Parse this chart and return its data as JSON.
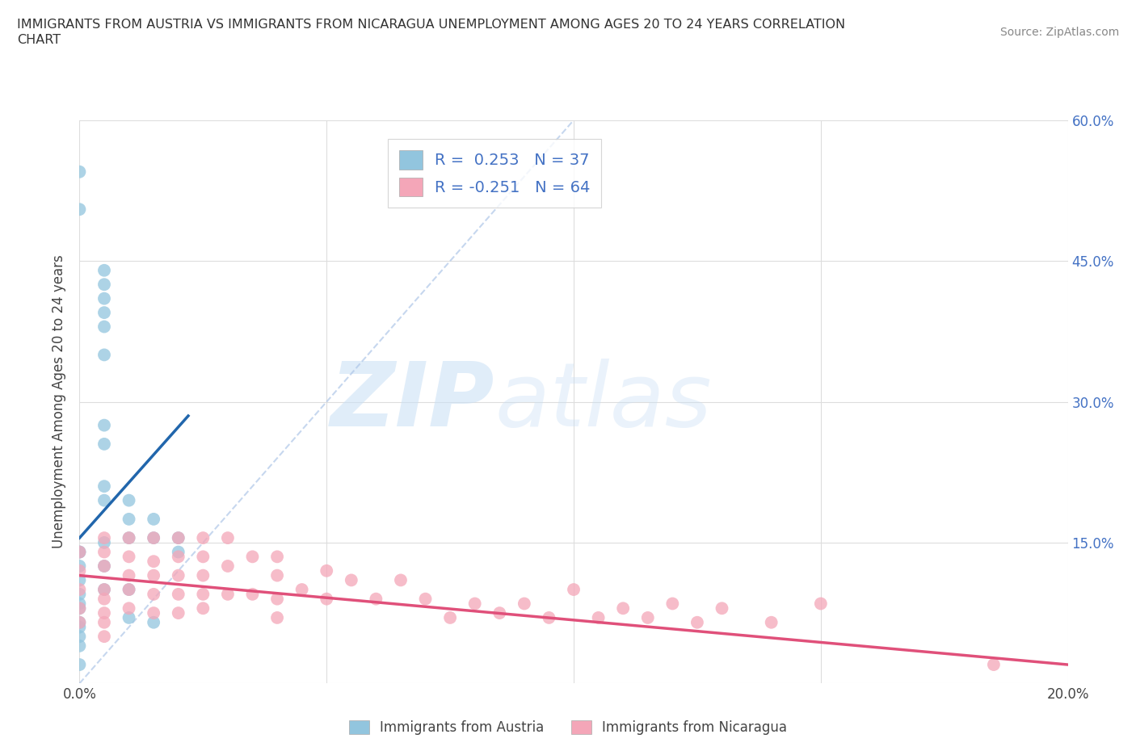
{
  "title_line1": "IMMIGRANTS FROM AUSTRIA VS IMMIGRANTS FROM NICARAGUA UNEMPLOYMENT AMONG AGES 20 TO 24 YEARS CORRELATION",
  "title_line2": "CHART",
  "source": "Source: ZipAtlas.com",
  "ylabel": "Unemployment Among Ages 20 to 24 years",
  "xmin": 0.0,
  "xmax": 0.2,
  "ymin": 0.0,
  "ymax": 0.6,
  "x_ticks": [
    0.0,
    0.05,
    0.1,
    0.15,
    0.2
  ],
  "y_ticks": [
    0.0,
    0.15,
    0.3,
    0.45,
    0.6
  ],
  "austria_color": "#92c5de",
  "nicaragua_color": "#f4a6b8",
  "austria_line_color": "#2166ac",
  "nicaragua_line_color": "#e0507a",
  "austria_R": 0.253,
  "austria_N": 37,
  "nicaragua_R": -0.251,
  "nicaragua_N": 64,
  "austria_scatter_x": [
    0.0,
    0.0,
    0.005,
    0.005,
    0.005,
    0.005,
    0.005,
    0.005,
    0.005,
    0.005,
    0.005,
    0.005,
    0.005,
    0.005,
    0.005,
    0.0,
    0.0,
    0.0,
    0.0,
    0.0,
    0.0,
    0.0,
    0.0,
    0.0,
    0.0,
    0.0,
    0.0,
    0.01,
    0.01,
    0.01,
    0.01,
    0.01,
    0.015,
    0.015,
    0.015,
    0.02,
    0.02
  ],
  "austria_scatter_y": [
    0.545,
    0.505,
    0.44,
    0.425,
    0.41,
    0.395,
    0.38,
    0.35,
    0.275,
    0.255,
    0.21,
    0.195,
    0.15,
    0.125,
    0.1,
    0.14,
    0.125,
    0.11,
    0.095,
    0.08,
    0.065,
    0.05,
    0.04,
    0.02,
    0.14,
    0.085,
    0.06,
    0.195,
    0.175,
    0.155,
    0.1,
    0.07,
    0.175,
    0.155,
    0.065,
    0.155,
    0.14
  ],
  "nicaragua_scatter_x": [
    0.0,
    0.0,
    0.0,
    0.0,
    0.0,
    0.005,
    0.005,
    0.005,
    0.005,
    0.005,
    0.005,
    0.005,
    0.005,
    0.01,
    0.01,
    0.01,
    0.01,
    0.01,
    0.015,
    0.015,
    0.015,
    0.015,
    0.015,
    0.02,
    0.02,
    0.02,
    0.02,
    0.02,
    0.025,
    0.025,
    0.025,
    0.025,
    0.025,
    0.03,
    0.03,
    0.03,
    0.035,
    0.035,
    0.04,
    0.04,
    0.04,
    0.04,
    0.045,
    0.05,
    0.05,
    0.055,
    0.06,
    0.065,
    0.07,
    0.075,
    0.08,
    0.085,
    0.09,
    0.095,
    0.1,
    0.105,
    0.11,
    0.115,
    0.12,
    0.125,
    0.13,
    0.14,
    0.15,
    0.185
  ],
  "nicaragua_scatter_y": [
    0.14,
    0.12,
    0.1,
    0.08,
    0.065,
    0.155,
    0.14,
    0.125,
    0.1,
    0.09,
    0.075,
    0.065,
    0.05,
    0.155,
    0.135,
    0.115,
    0.1,
    0.08,
    0.155,
    0.13,
    0.115,
    0.095,
    0.075,
    0.155,
    0.135,
    0.115,
    0.095,
    0.075,
    0.155,
    0.135,
    0.115,
    0.095,
    0.08,
    0.155,
    0.125,
    0.095,
    0.135,
    0.095,
    0.135,
    0.115,
    0.09,
    0.07,
    0.1,
    0.12,
    0.09,
    0.11,
    0.09,
    0.11,
    0.09,
    0.07,
    0.085,
    0.075,
    0.085,
    0.07,
    0.1,
    0.07,
    0.08,
    0.07,
    0.085,
    0.065,
    0.08,
    0.065,
    0.085,
    0.02
  ],
  "austria_line_x0": 0.0,
  "austria_line_x1": 0.022,
  "austria_line_y0": 0.155,
  "austria_line_y1": 0.285,
  "nicaragua_line_x0": 0.0,
  "nicaragua_line_x1": 0.2,
  "nicaragua_line_y0": 0.115,
  "nicaragua_line_y1": 0.02
}
